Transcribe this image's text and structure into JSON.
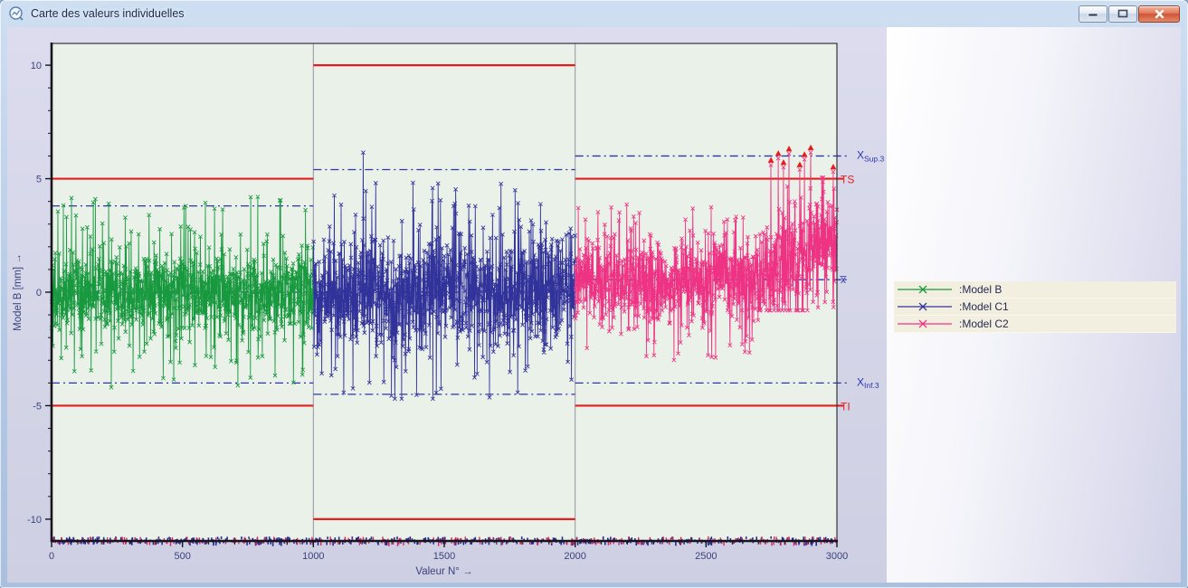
{
  "window": {
    "title": "Carte des valeurs individuelles",
    "icons": {
      "app": "control-chart-orb-icon",
      "minimize": "minimize-icon",
      "maximize": "maximize-icon",
      "close": "close-icon"
    }
  },
  "legend": {
    "items": [
      {
        "label": ":Model B",
        "color": "#18993f"
      },
      {
        "label": ":Model C1",
        "color": "#32329b"
      },
      {
        "label": ":Model C2",
        "color": "#ee3384"
      }
    ]
  },
  "chart_data": {
    "type": "line",
    "title": "Carte des valeurs individuelles",
    "xlabel": "Valeur N° →",
    "ylabel": "Model B [mm] →",
    "xlim": [
      0,
      3000
    ],
    "ylim": [
      -10.96,
      10.96
    ],
    "x_ticks": [
      0,
      500,
      1000,
      1500,
      2000,
      2500,
      3000
    ],
    "x_tick_labels": [
      "0",
      "500",
      "1000",
      "1500",
      "2000",
      "2500",
      "3000"
    ],
    "x_minor_step": 100,
    "y_ticks": [
      10,
      5,
      0,
      -5,
      -10
    ],
    "y_tick_labels": [
      "10",
      "5",
      "0",
      "-5",
      "-10"
    ],
    "y_minor_step": 1,
    "grid": "section-dividers-only",
    "section_divider_x": [
      1000,
      2000
    ],
    "legend_position": "right-panel",
    "plot_bg": "#eaf1e8",
    "limit_color": "#e41e1e",
    "reference_color": "#2c35ad",
    "divider_color": "#9b9ba8",
    "tick_label_color": "#39437c",
    "series": [
      {
        "name": ":Model B",
        "color": "#18993f",
        "x_range": [
          0,
          1000
        ],
        "n": 1000,
        "mean": 0.0,
        "sigma": 0.95,
        "spike_rate": 0.045,
        "spike_range": [
          2.4,
          4.2
        ],
        "clamp": [
          -4.45,
          4.3
        ],
        "control_limits": {
          "ts": 5,
          "ti": -5,
          "x_sup": 3.8,
          "x_inf": -4.0,
          "center": 0.0
        }
      },
      {
        "name": ":Model C1",
        "color": "#32329b",
        "x_range": [
          1000,
          2000
        ],
        "n": 1000,
        "mean": 0.0,
        "sigma": 1.35,
        "spike_rate": 0.045,
        "spike_range": [
          3.1,
          4.9
        ],
        "clamp": [
          -4.7,
          5.0
        ],
        "outlier": {
          "x": 1190,
          "v": 6.15
        },
        "control_limits": {
          "ts": 10,
          "ti": -10,
          "x_sup": 5.4,
          "x_inf": -4.5,
          "center": 0.0
        }
      },
      {
        "name": ":Model C2",
        "color": "#ee3384",
        "x_range": [
          2000,
          3000
        ],
        "n": 1000,
        "mean": 0.45,
        "sigma": 1.0,
        "spike_rate": 0.04,
        "spike_range": [
          2.5,
          3.6
        ],
        "clamp": [
          -3.6,
          5.05
        ],
        "drift": {
          "from_x": 2700,
          "to_mean": 2.8,
          "sigma": 1.15,
          "min_v": -0.8
        },
        "out_of_control_points": [
          {
            "x": 2748,
            "v": 5.6
          },
          {
            "x": 2776,
            "v": 5.9
          },
          {
            "x": 2796,
            "v": 5.5
          },
          {
            "x": 2817,
            "v": 6.1
          },
          {
            "x": 2858,
            "v": 5.4
          },
          {
            "x": 2876,
            "v": 5.85
          },
          {
            "x": 2900,
            "v": 6.15
          },
          {
            "x": 2986,
            "v": 5.3
          }
        ],
        "control_limits": {
          "ts": 5,
          "ti": -5,
          "x_sup": 6.0,
          "x_inf": -4.0,
          "center": 0.55
        }
      }
    ],
    "annotations": {
      "ts": "TS",
      "ti": "TI",
      "x_sup_main": "X",
      "x_sup_sub": "Sup.3",
      "x_inf_main": "X",
      "x_inf_sub": "Inf.3",
      "xbar": "x̅",
      "oc_marker": "red-up-arrow",
      "oc_marker_color": "#e41e1e"
    },
    "bottom_band": {
      "description": "dense clipped values strip along bottom axis",
      "y_value": -10.8,
      "colors": [
        "#2a2a90",
        "#d42a62"
      ]
    }
  }
}
